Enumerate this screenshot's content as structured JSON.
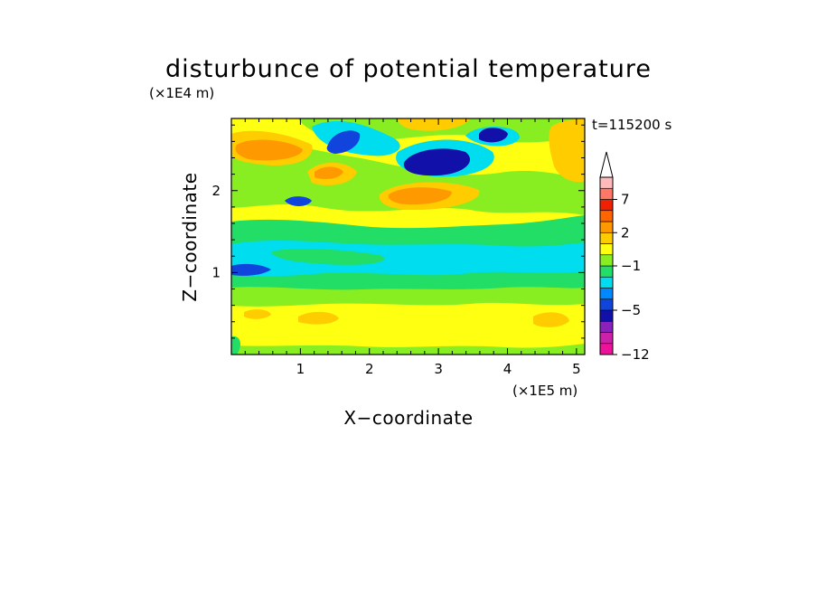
{
  "chart_data": {
    "type": "heatmap",
    "title": "disturbunce of potential temperature",
    "time_label": "t=115200 s",
    "xlabel": "X−coordinate",
    "ylabel": "Z−coordinate",
    "x_scale_label": "(×1E5 m)",
    "y_scale_label": "(×1E4 m)",
    "xlim": [
      0,
      5.12
    ],
    "ylim": [
      0,
      2.88
    ],
    "x_ticks": [
      "1",
      "2",
      "3",
      "4",
      "5"
    ],
    "y_ticks": [
      "1",
      "2"
    ],
    "grid": false,
    "colorbar": {
      "position": "right",
      "extend": "max",
      "levels": [
        -12,
        -11,
        -9,
        -7,
        -5,
        -4,
        -3,
        -2,
        -1,
        0,
        1,
        2,
        3,
        5,
        7,
        9,
        11
      ],
      "tick_labels": [
        "7",
        "2",
        "−1",
        "−5",
        "−12"
      ],
      "colors": [
        "#ee1199",
        "#cc22aa",
        "#8822bb",
        "#1111aa",
        "#1144dd",
        "#0088ff",
        "#00ddee",
        "#22dd66",
        "#88ee22",
        "#ffff11",
        "#ffcc00",
        "#ff9900",
        "#ff6600",
        "#ee2200",
        "#ff7766",
        "#ffbbbb"
      ]
    },
    "features": [
      {
        "x": 0.45,
        "z": 2.52,
        "value": 4
      },
      {
        "x": 1.5,
        "z": 2.27,
        "value": 4
      },
      {
        "x": 1.65,
        "z": 2.62,
        "value": -5
      },
      {
        "x": 3.0,
        "z": 2.45,
        "value": -5
      },
      {
        "x": 3.8,
        "z": 2.72,
        "value": -5
      },
      {
        "x": 2.8,
        "z": 1.95,
        "value": 4
      },
      {
        "x": 0.95,
        "z": 1.85,
        "value": -4
      },
      {
        "x": 2.6,
        "z": 1.45,
        "value": -1
      },
      {
        "x": 2.5,
        "z": 1.1,
        "value": -1
      }
    ]
  }
}
